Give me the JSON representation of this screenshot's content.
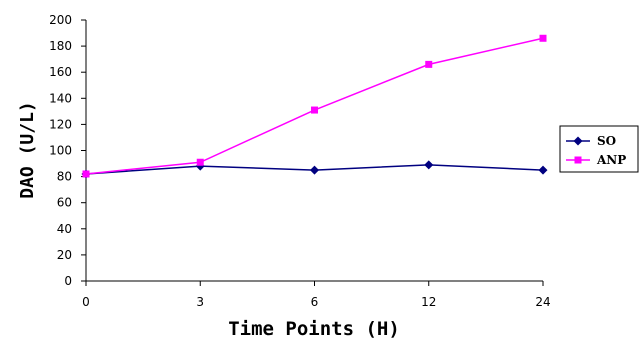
{
  "chart_data": {
    "type": "line",
    "categories": [
      "0",
      "3",
      "6",
      "12",
      "24"
    ],
    "series": [
      {
        "name": "SO",
        "values": [
          82,
          88,
          85,
          89,
          85
        ],
        "color": "#000080",
        "marker": "diamond"
      },
      {
        "name": "ANP",
        "values": [
          82,
          91,
          131,
          166,
          186
        ],
        "color": "#ff00ff",
        "marker": "square"
      }
    ],
    "xlabel": "Time Points (H)",
    "ylabel": "DAO (U/L)",
    "ylim": [
      0,
      200
    ],
    "yticks": [
      "0",
      "20",
      "40",
      "60",
      "80",
      "100",
      "120",
      "140",
      "160",
      "180",
      "200"
    ],
    "grid": false,
    "legend": "right"
  }
}
